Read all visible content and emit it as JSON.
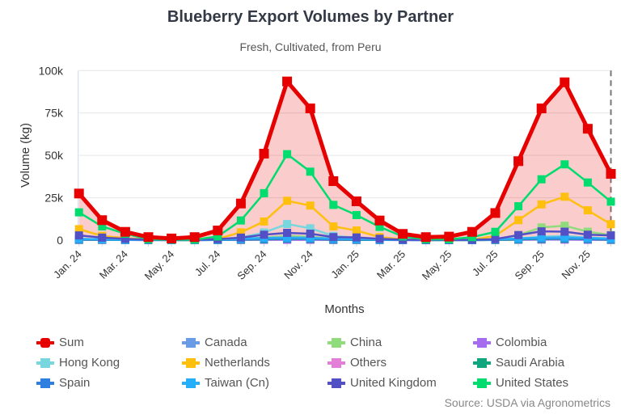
{
  "title": "Blueberry Export Volumes by Partner",
  "subtitle": "Fresh, Cultivated, from Peru",
  "source": "Source: USDA via Agronometrics",
  "chart_data": {
    "type": "line",
    "title": "Blueberry Export Volumes by Partner",
    "subtitle": "Fresh, Cultivated, from Peru",
    "xlabel": "Months",
    "ylabel": "Volume (kg)",
    "ylim": [
      0,
      100000
    ],
    "yticks": [
      0,
      25000,
      50000,
      75000,
      100000
    ],
    "ytick_labels": [
      "0",
      "25k",
      "50k",
      "75k",
      "100k"
    ],
    "grid": true,
    "legend_placement": "bottom",
    "categories": [
      "Jan. 24",
      "Feb. 24",
      "Mar. 24",
      "Apr. 24",
      "May. 24",
      "Jun. 24",
      "Jul. 24",
      "Aug. 24",
      "Sep. 24",
      "Oct. 24",
      "Nov. 24",
      "Dec. 24",
      "Jan. 25",
      "Feb. 25",
      "Mar. 25",
      "Apr. 25",
      "May. 25",
      "Jun. 25",
      "Jul. 25",
      "Aug. 25",
      "Sep. 25",
      "Oct. 25",
      "Nov. 25",
      "Dec. 25"
    ],
    "tick_labels": [
      "Jan. 24",
      "Mar. 24",
      "May. 24",
      "Jul. 24",
      "Sep. 24",
      "Nov. 24",
      "Jan. 25",
      "Mar. 25",
      "May. 25",
      "Jul. 25",
      "Sep. 25",
      "Nov. 25"
    ],
    "series": [
      {
        "name": "Sum",
        "color": "#e60000",
        "filled": true,
        "values": [
          27500,
          11800,
          4900,
          1800,
          1000,
          1800,
          5700,
          21600,
          51000,
          93600,
          77700,
          34800,
          22900,
          11600,
          3700,
          1800,
          2100,
          4900,
          16000,
          46600,
          77700,
          93100,
          65700,
          39100
        ]
      },
      {
        "name": "Canada",
        "color": "#6a9be6",
        "values": [
          300,
          300,
          200,
          100,
          100,
          100,
          200,
          300,
          500,
          600,
          500,
          300,
          300,
          200,
          100,
          100,
          100,
          100,
          200,
          400,
          500,
          600,
          400,
          300
        ]
      },
      {
        "name": "China",
        "color": "#90dc7c",
        "values": [
          500,
          300,
          200,
          100,
          100,
          100,
          300,
          800,
          1500,
          2500,
          2000,
          800,
          500,
          300,
          100,
          100,
          100,
          100,
          500,
          3000,
          7500,
          8500,
          5000,
          3000
        ]
      },
      {
        "name": "Colombia",
        "color": "#a66cf0",
        "values": [
          100,
          100,
          100,
          0,
          0,
          0,
          100,
          100,
          200,
          200,
          200,
          100,
          100,
          100,
          0,
          0,
          0,
          0,
          100,
          200,
          300,
          300,
          200,
          100
        ]
      },
      {
        "name": "Hong Kong",
        "color": "#77d6de",
        "values": [
          800,
          400,
          200,
          100,
          100,
          100,
          300,
          1500,
          4500,
          9500,
          7000,
          2500,
          1500,
          500,
          100,
          100,
          100,
          100,
          300,
          1000,
          2000,
          2500,
          1500,
          1000
        ]
      },
      {
        "name": "Netherlands",
        "color": "#ffbf0f",
        "values": [
          6500,
          2500,
          1200,
          300,
          300,
          300,
          800,
          4600,
          11000,
          23200,
          20400,
          8100,
          5700,
          1800,
          500,
          200,
          200,
          200,
          2500,
          11800,
          21100,
          25600,
          17600,
          9400
        ]
      },
      {
        "name": "Others",
        "color": "#e47fd8",
        "values": [
          500,
          300,
          200,
          100,
          100,
          100,
          300,
          700,
          1200,
          1600,
          1400,
          700,
          500,
          300,
          100,
          100,
          100,
          100,
          300,
          900,
          1500,
          1700,
          1200,
          800
        ]
      },
      {
        "name": "Saudi Arabia",
        "color": "#10a67e",
        "values": [
          300,
          200,
          100,
          100,
          0,
          0,
          100,
          300,
          500,
          800,
          700,
          300,
          200,
          100,
          100,
          0,
          0,
          0,
          100,
          400,
          700,
          800,
          600,
          300
        ]
      },
      {
        "name": "Spain",
        "color": "#2f7fe0",
        "values": [
          500,
          300,
          200,
          100,
          100,
          100,
          200,
          500,
          800,
          1000,
          900,
          500,
          400,
          200,
          100,
          100,
          100,
          100,
          300,
          700,
          1000,
          1100,
          800,
          500
        ]
      },
      {
        "name": "Taiwan (Cn)",
        "color": "#27aef8",
        "values": [
          800,
          500,
          300,
          200,
          100,
          100,
          300,
          900,
          1300,
          1500,
          1400,
          900,
          700,
          400,
          200,
          100,
          100,
          100,
          400,
          1000,
          1500,
          1600,
          1300,
          900
        ]
      },
      {
        "name": "United Kingdom",
        "color": "#5350c6",
        "values": [
          2800,
          1500,
          800,
          300,
          200,
          200,
          600,
          1500,
          3200,
          4300,
          3800,
          1800,
          1600,
          800,
          300,
          200,
          200,
          200,
          600,
          3000,
          5200,
          5000,
          3200,
          2800
        ]
      },
      {
        "name": "United States",
        "color": "#00dc6e",
        "values": [
          16400,
          8100,
          3800,
          500,
          300,
          300,
          2200,
          11600,
          27700,
          50700,
          40400,
          20800,
          14800,
          7800,
          2200,
          500,
          500,
          1800,
          4900,
          20000,
          35900,
          44700,
          34000,
          22700
        ]
      }
    ]
  }
}
